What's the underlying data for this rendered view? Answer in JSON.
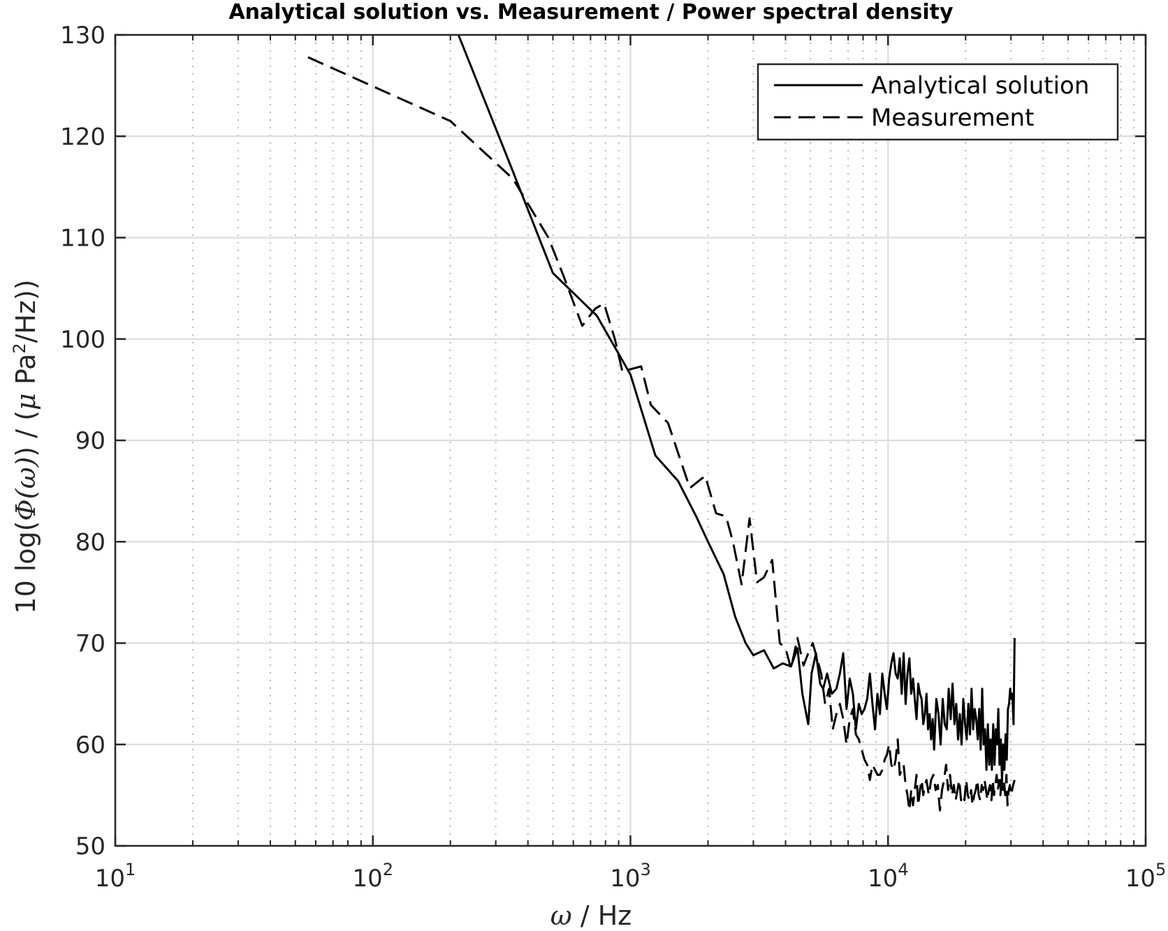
{
  "chart_data": {
    "type": "line",
    "title": "Analytical solution vs. Measurement / Power spectral density",
    "xlabel": {
      "symbol": "ω",
      "unit": " / Hz"
    },
    "ylabel": {
      "prefix": "10 log(",
      "symbol": "Φ(ω)",
      "middle": ") / (",
      "mu": "μ",
      "unit_part1": " Pa",
      "exponent": "2",
      "unit_part2": "/Hz))"
    },
    "x_scale": "log",
    "xlim": [
      10,
      100000
    ],
    "ylim": [
      50,
      130
    ],
    "x_ticks": [
      {
        "base": "10",
        "exp": "1",
        "value": 10
      },
      {
        "base": "10",
        "exp": "2",
        "value": 100
      },
      {
        "base": "10",
        "exp": "3",
        "value": 1000
      },
      {
        "base": "10",
        "exp": "4",
        "value": 10000
      },
      {
        "base": "10",
        "exp": "5",
        "value": 100000
      }
    ],
    "y_ticks": [
      "50",
      "60",
      "70",
      "80",
      "90",
      "100",
      "110",
      "120",
      "130"
    ],
    "grid": true,
    "minor_grid": true,
    "legend_position": "top-right",
    "series": [
      {
        "name": "Analytical solution",
        "style": "solid",
        "color": "#000000",
        "points": [
          [
            215,
            130
          ],
          [
            350,
            116.5
          ],
          [
            500,
            106.5
          ],
          [
            740,
            102.3
          ],
          [
            1000,
            96.5
          ],
          [
            1250,
            88.5
          ],
          [
            1530,
            86
          ],
          [
            1800,
            82.5
          ],
          [
            2000,
            80
          ],
          [
            2300,
            76.8
          ],
          [
            2550,
            72.6
          ],
          [
            2800,
            70
          ],
          [
            3000,
            68.8
          ],
          [
            3300,
            69.3
          ],
          [
            3600,
            67.5
          ],
          [
            3900,
            68
          ],
          [
            4200,
            67.7
          ],
          [
            4450,
            69.5
          ],
          [
            4650,
            65
          ],
          [
            4900,
            62
          ],
          [
            5050,
            67
          ],
          [
            5250,
            69
          ],
          [
            5450,
            66
          ],
          [
            5600,
            65.5
          ],
          [
            5800,
            67
          ],
          [
            6050,
            65
          ],
          [
            6300,
            65.5
          ],
          [
            6500,
            67
          ],
          [
            6700,
            69
          ],
          [
            6900,
            63.5
          ],
          [
            7100,
            66.5
          ],
          [
            7300,
            65
          ],
          [
            7500,
            61.5
          ],
          [
            7700,
            64
          ],
          [
            7900,
            63
          ],
          [
            8100,
            63.5
          ],
          [
            8300,
            64.5
          ],
          [
            8500,
            67
          ],
          [
            8700,
            64
          ],
          [
            8900,
            61.5
          ],
          [
            9100,
            65
          ],
          [
            9300,
            63
          ],
          [
            9500,
            67
          ],
          [
            9700,
            65
          ],
          [
            9900,
            63.5
          ],
          [
            10100,
            66.5
          ],
          [
            10300,
            68
          ],
          [
            10500,
            69
          ],
          [
            10700,
            67
          ],
          [
            10900,
            66.5
          ],
          [
            11100,
            68.5
          ],
          [
            11300,
            65
          ],
          [
            11500,
            69
          ],
          [
            11700,
            64
          ],
          [
            11900,
            67
          ],
          [
            12100,
            68.5
          ],
          [
            12300,
            65
          ],
          [
            12500,
            66.5
          ],
          [
            12700,
            64.5
          ],
          [
            12900,
            62.5
          ],
          [
            13100,
            66
          ],
          [
            13300,
            65
          ],
          [
            13500,
            64.5
          ],
          [
            13700,
            62
          ],
          [
            13900,
            63
          ],
          [
            14100,
            65
          ],
          [
            14300,
            61.5
          ],
          [
            14500,
            63
          ],
          [
            14700,
            60.5
          ],
          [
            14900,
            62.5
          ],
          [
            15100,
            59.5
          ],
          [
            15400,
            64.5
          ],
          [
            15700,
            63
          ],
          [
            16000,
            60
          ],
          [
            16300,
            64.5
          ],
          [
            16600,
            62
          ],
          [
            16900,
            61.5
          ],
          [
            17200,
            65.5
          ],
          [
            17500,
            62.5
          ],
          [
            17800,
            66
          ],
          [
            18100,
            62
          ],
          [
            18400,
            64
          ],
          [
            18700,
            60.5
          ],
          [
            19000,
            63
          ],
          [
            19300,
            60
          ],
          [
            19600,
            64.5
          ],
          [
            19900,
            62
          ],
          [
            20200,
            60.5
          ],
          [
            20500,
            64
          ],
          [
            20800,
            61
          ],
          [
            21100,
            65.5
          ],
          [
            21400,
            61.5
          ],
          [
            21700,
            63.5
          ],
          [
            22000,
            62.5
          ],
          [
            22300,
            60.5
          ],
          [
            22600,
            63.5
          ],
          [
            22900,
            59.5
          ],
          [
            23200,
            65.5
          ],
          [
            23500,
            60
          ],
          [
            23800,
            61.5
          ],
          [
            24100,
            57.5
          ],
          [
            24400,
            62
          ],
          [
            24700,
            58
          ],
          [
            25000,
            60.5
          ],
          [
            25300,
            57.5
          ],
          [
            25600,
            62
          ],
          [
            25900,
            58
          ],
          [
            26200,
            61.5
          ],
          [
            26500,
            60
          ],
          [
            26800,
            63.5
          ],
          [
            27100,
            58
          ],
          [
            27400,
            60.5
          ],
          [
            27700,
            56.5
          ],
          [
            28000,
            60
          ],
          [
            28300,
            57.5
          ],
          [
            28600,
            61
          ],
          [
            28900,
            58.5
          ],
          [
            29200,
            63.5
          ],
          [
            29500,
            64
          ],
          [
            29800,
            65.5
          ],
          [
            30100,
            64.5
          ],
          [
            30400,
            65
          ],
          [
            30700,
            62
          ],
          [
            31000,
            70.5
          ]
        ]
      },
      {
        "name": "Measurement",
        "style": "dashed",
        "color": "#000000",
        "points": [
          [
            56,
            127.8
          ],
          [
            200,
            121.5
          ],
          [
            350,
            115.8
          ],
          [
            480,
            110
          ],
          [
            550,
            106.2
          ],
          [
            650,
            101.3
          ],
          [
            730,
            103
          ],
          [
            790,
            103.5
          ],
          [
            870,
            100
          ],
          [
            930,
            96.8
          ],
          [
            1100,
            97.3
          ],
          [
            1200,
            93.5
          ],
          [
            1400,
            91.7
          ],
          [
            1700,
            85.3
          ],
          [
            1950,
            86.5
          ],
          [
            2150,
            82.8
          ],
          [
            2350,
            82.5
          ],
          [
            2500,
            80
          ],
          [
            2700,
            75.8
          ],
          [
            2900,
            82.3
          ],
          [
            3100,
            76
          ],
          [
            3300,
            76.5
          ],
          [
            3550,
            78.2
          ],
          [
            3800,
            70
          ],
          [
            4000,
            69.5
          ],
          [
            4200,
            67.5
          ],
          [
            4450,
            70.5
          ],
          [
            4700,
            67.8
          ],
          [
            4900,
            69
          ],
          [
            5100,
            70
          ],
          [
            5300,
            68.5
          ],
          [
            5500,
            67
          ],
          [
            5700,
            64
          ],
          [
            5900,
            65.5
          ],
          [
            6100,
            61.5
          ],
          [
            6300,
            63
          ],
          [
            6500,
            64
          ],
          [
            6700,
            62.5
          ],
          [
            6900,
            60
          ],
          [
            7100,
            62.5
          ],
          [
            7300,
            63.5
          ],
          [
            7500,
            61
          ],
          [
            7700,
            60.5
          ],
          [
            7900,
            59.5
          ],
          [
            8100,
            58.5
          ],
          [
            8300,
            58
          ],
          [
            8500,
            56.5
          ],
          [
            8700,
            58
          ],
          [
            8900,
            57.5
          ],
          [
            9100,
            57
          ],
          [
            9300,
            57
          ],
          [
            9500,
            57.5
          ],
          [
            9700,
            58.5
          ],
          [
            9900,
            59
          ],
          [
            10100,
            60
          ],
          [
            10300,
            58
          ],
          [
            10500,
            57.5
          ],
          [
            10700,
            58.5
          ],
          [
            10900,
            60.5
          ],
          [
            11100,
            57
          ],
          [
            11300,
            57.5
          ],
          [
            11500,
            58
          ],
          [
            11700,
            56
          ],
          [
            11900,
            55
          ],
          [
            12100,
            53.5
          ],
          [
            12300,
            55.5
          ],
          [
            12500,
            54
          ],
          [
            12700,
            55.5
          ],
          [
            12900,
            57
          ],
          [
            13100,
            54
          ],
          [
            13300,
            55.5
          ],
          [
            13500,
            56.5
          ],
          [
            13700,
            55
          ],
          [
            13900,
            56
          ],
          [
            14100,
            56.5
          ],
          [
            14400,
            55
          ],
          [
            14700,
            56.5
          ],
          [
            15000,
            57
          ],
          [
            15300,
            55.5
          ],
          [
            15600,
            56
          ],
          [
            15900,
            53.5
          ],
          [
            16200,
            55.5
          ],
          [
            16500,
            56.5
          ],
          [
            16800,
            58
          ],
          [
            17100,
            55.5
          ],
          [
            17400,
            57
          ],
          [
            17700,
            55
          ],
          [
            18000,
            56
          ],
          [
            18300,
            54.5
          ],
          [
            18600,
            55.5
          ],
          [
            18900,
            56.5
          ],
          [
            19200,
            54.5
          ],
          [
            19500,
            55
          ],
          [
            19800,
            54.5
          ],
          [
            20100,
            56.5
          ],
          [
            20400,
            55
          ],
          [
            20700,
            54.5
          ],
          [
            21000,
            55.5
          ],
          [
            21300,
            54
          ],
          [
            21600,
            55
          ],
          [
            21900,
            55.5
          ],
          [
            22200,
            56.5
          ],
          [
            22500,
            55
          ],
          [
            22800,
            54.5
          ],
          [
            23100,
            56
          ],
          [
            23400,
            55.5
          ],
          [
            23700,
            56.5
          ],
          [
            24000,
            55.5
          ],
          [
            24300,
            54.5
          ],
          [
            24600,
            55.5
          ],
          [
            24900,
            56
          ],
          [
            25200,
            54.5
          ],
          [
            25500,
            56.5
          ],
          [
            25800,
            55
          ],
          [
            26100,
            56
          ],
          [
            26400,
            57
          ],
          [
            26700,
            55.5
          ],
          [
            27000,
            56.5
          ],
          [
            27300,
            55
          ],
          [
            27600,
            57
          ],
          [
            27900,
            55.5
          ],
          [
            28200,
            56.5
          ],
          [
            28500,
            55
          ],
          [
            28800,
            57
          ],
          [
            29100,
            54
          ],
          [
            29400,
            55.5
          ],
          [
            29700,
            56
          ],
          [
            30000,
            55
          ],
          [
            30300,
            55.5
          ],
          [
            30600,
            56
          ],
          [
            31000,
            56.5
          ]
        ]
      }
    ]
  }
}
